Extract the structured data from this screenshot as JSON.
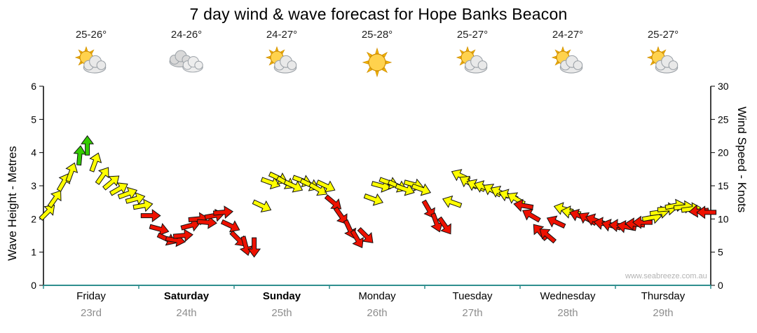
{
  "title": "7 day wind & wave forecast for Hope Banks Beacon",
  "watermark": "www.seabreeze.com.au",
  "axes": {
    "left_label": "Wave Height - Metres",
    "right_label": "Wind Speed - Knots",
    "left_ticks": [
      0,
      1,
      2,
      3,
      4,
      5,
      6
    ],
    "right_ticks": [
      0,
      5,
      10,
      15,
      20,
      25,
      30
    ]
  },
  "days": [
    {
      "label": "Friday",
      "date": "23rd",
      "temp": "25-26°",
      "icon": "partly-cloudy-icon",
      "weekend": false
    },
    {
      "label": "Saturday",
      "date": "24th",
      "temp": "24-26°",
      "icon": "cloudy-icon",
      "weekend": true
    },
    {
      "label": "Sunday",
      "date": "25th",
      "temp": "24-27°",
      "icon": "partly-cloudy-icon",
      "weekend": true
    },
    {
      "label": "Monday",
      "date": "26th",
      "temp": "25-28°",
      "icon": "sunny-icon",
      "weekend": false
    },
    {
      "label": "Tuesday",
      "date": "27th",
      "temp": "25-27°",
      "icon": "partly-cloudy-icon",
      "weekend": false
    },
    {
      "label": "Wednesday",
      "date": "28th",
      "temp": "24-27°",
      "icon": "partly-cloudy-icon",
      "weekend": false
    },
    {
      "label": "Thursday",
      "date": "29th",
      "temp": "25-27°",
      "icon": "partly-cloudy-icon",
      "weekend": false
    }
  ],
  "colors": {
    "arrow_yellow": "#ffff00",
    "arrow_red": "#ee1100",
    "arrow_green": "#33cc00",
    "axis_black": "#000000",
    "x_axis_teal": "#2f8f8f",
    "date_grey": "#8d8d8d"
  },
  "chart_data": {
    "type": "scatter",
    "subtype": "wind-arrow-timeseries",
    "title": "7 day wind & wave forecast for Hope Banks Beacon",
    "x_categories": [
      "Friday 23rd",
      "Saturday 24th",
      "Sunday 25th",
      "Monday 26th",
      "Tuesday 27th",
      "Wednesday 28th",
      "Thursday 29th"
    ],
    "y_left_label": "Wave Height - Metres",
    "y_left_range": [
      0,
      6
    ],
    "y_right_label": "Wind Speed - Knots",
    "y_right_range": [
      0,
      30
    ],
    "grid": false,
    "note": "arrow vertical position reads on both axes (knots = 5 x metres); color = strength band",
    "arrow_fields": [
      "day_index",
      "day_fraction",
      "wind_knots",
      "direction_deg_screen",
      "color(y|r|g)"
    ],
    "arrows": [
      [
        0,
        0.04,
        11,
        -45,
        "y"
      ],
      [
        0,
        0.12,
        13,
        -55,
        "y"
      ],
      [
        0,
        0.21,
        15.5,
        -60,
        "y"
      ],
      [
        0,
        0.29,
        17,
        -70,
        "y"
      ],
      [
        0,
        0.38,
        19.5,
        -85,
        "g"
      ],
      [
        0,
        0.46,
        21,
        -90,
        "g"
      ],
      [
        0,
        0.54,
        18.5,
        -70,
        "y"
      ],
      [
        0,
        0.62,
        16.5,
        -55,
        "y"
      ],
      [
        0,
        0.71,
        15.5,
        -40,
        "y"
      ],
      [
        0,
        0.79,
        14.5,
        -30,
        "y"
      ],
      [
        0,
        0.88,
        13.8,
        -20,
        "y"
      ],
      [
        0,
        0.96,
        13,
        -15,
        "y"
      ],
      [
        1,
        0.04,
        12,
        -10,
        "y"
      ],
      [
        1,
        0.12,
        10.5,
        0,
        "r"
      ],
      [
        1,
        0.21,
        8.5,
        15,
        "r"
      ],
      [
        1,
        0.29,
        7,
        25,
        "r"
      ],
      [
        1,
        0.38,
        6.8,
        10,
        "r"
      ],
      [
        1,
        0.46,
        7.5,
        -5,
        "r"
      ],
      [
        1,
        0.54,
        9,
        -15,
        "r"
      ],
      [
        1,
        0.62,
        10,
        -5,
        "r"
      ],
      [
        1,
        0.71,
        9.5,
        5,
        "r"
      ],
      [
        1,
        0.79,
        10.5,
        -10,
        "r"
      ],
      [
        1,
        0.88,
        11,
        -5,
        "r"
      ],
      [
        1,
        0.96,
        9,
        25,
        "r"
      ],
      [
        2,
        0.04,
        7,
        45,
        "r"
      ],
      [
        2,
        0.12,
        6,
        75,
        "r"
      ],
      [
        2,
        0.21,
        5.8,
        90,
        "r"
      ],
      [
        2,
        0.29,
        12,
        25,
        "y"
      ],
      [
        2,
        0.38,
        15.5,
        20,
        "y"
      ],
      [
        2,
        0.46,
        16.2,
        25,
        "y"
      ],
      [
        2,
        0.54,
        15.5,
        30,
        "y"
      ],
      [
        2,
        0.62,
        15,
        25,
        "y"
      ],
      [
        2,
        0.71,
        15.8,
        20,
        "y"
      ],
      [
        2,
        0.79,
        15.2,
        25,
        "y"
      ],
      [
        2,
        0.88,
        14.5,
        30,
        "y"
      ],
      [
        2,
        0.96,
        15,
        25,
        "y"
      ],
      [
        3,
        0.04,
        12.5,
        40,
        "r"
      ],
      [
        3,
        0.12,
        10.5,
        55,
        "r"
      ],
      [
        3,
        0.21,
        8.5,
        65,
        "r"
      ],
      [
        3,
        0.29,
        7,
        60,
        "r"
      ],
      [
        3,
        0.38,
        7.5,
        45,
        "r"
      ],
      [
        3,
        0.46,
        13,
        20,
        "y"
      ],
      [
        3,
        0.54,
        15,
        15,
        "y"
      ],
      [
        3,
        0.62,
        15.5,
        20,
        "y"
      ],
      [
        3,
        0.71,
        15,
        25,
        "y"
      ],
      [
        3,
        0.79,
        14.5,
        20,
        "y"
      ],
      [
        3,
        0.88,
        15.2,
        15,
        "y"
      ],
      [
        3,
        0.96,
        14.5,
        20,
        "y"
      ],
      [
        4,
        0.04,
        11.5,
        60,
        "r"
      ],
      [
        4,
        0.12,
        9.5,
        70,
        "r"
      ],
      [
        4,
        0.21,
        9,
        55,
        "r"
      ],
      [
        4,
        0.29,
        12.5,
        -160,
        "y"
      ],
      [
        4,
        0.38,
        16.5,
        -155,
        "y"
      ],
      [
        4,
        0.46,
        15.5,
        -150,
        "y"
      ],
      [
        4,
        0.54,
        15,
        -155,
        "y"
      ],
      [
        4,
        0.62,
        14.8,
        -160,
        "y"
      ],
      [
        4,
        0.71,
        14.3,
        -150,
        "y"
      ],
      [
        4,
        0.79,
        14,
        -155,
        "y"
      ],
      [
        4,
        0.88,
        13.5,
        -160,
        "y"
      ],
      [
        4,
        0.96,
        13,
        -150,
        "y"
      ],
      [
        5,
        0.04,
        12,
        -170,
        "r"
      ],
      [
        5,
        0.12,
        10.5,
        -150,
        "r"
      ],
      [
        5,
        0.21,
        8,
        -130,
        "r"
      ],
      [
        5,
        0.29,
        7.5,
        -140,
        "r"
      ],
      [
        5,
        0.38,
        9.5,
        -155,
        "r"
      ],
      [
        5,
        0.46,
        11.5,
        -165,
        "y"
      ],
      [
        5,
        0.54,
        11,
        -170,
        "y"
      ],
      [
        5,
        0.62,
        10.5,
        -160,
        "r"
      ],
      [
        5,
        0.71,
        10,
        -150,
        "r"
      ],
      [
        5,
        0.79,
        9.8,
        -160,
        "r"
      ],
      [
        5,
        0.88,
        9.3,
        -170,
        "r"
      ],
      [
        5,
        0.96,
        9,
        -165,
        "r"
      ],
      [
        6,
        0.04,
        9,
        -175,
        "r"
      ],
      [
        6,
        0.12,
        8.8,
        -170,
        "r"
      ],
      [
        6,
        0.21,
        9.2,
        -175,
        "r"
      ],
      [
        6,
        0.29,
        9.5,
        180,
        "r"
      ],
      [
        6,
        0.38,
        10.2,
        -10,
        "y"
      ],
      [
        6,
        0.46,
        11,
        -8,
        "y"
      ],
      [
        6,
        0.54,
        11.5,
        -5,
        "y"
      ],
      [
        6,
        0.62,
        12,
        -10,
        "y"
      ],
      [
        6,
        0.71,
        11.8,
        -6,
        "y"
      ],
      [
        6,
        0.79,
        11.5,
        -8,
        "y"
      ],
      [
        6,
        0.88,
        11.2,
        175,
        "r"
      ],
      [
        6,
        0.96,
        11,
        180,
        "r"
      ]
    ]
  }
}
